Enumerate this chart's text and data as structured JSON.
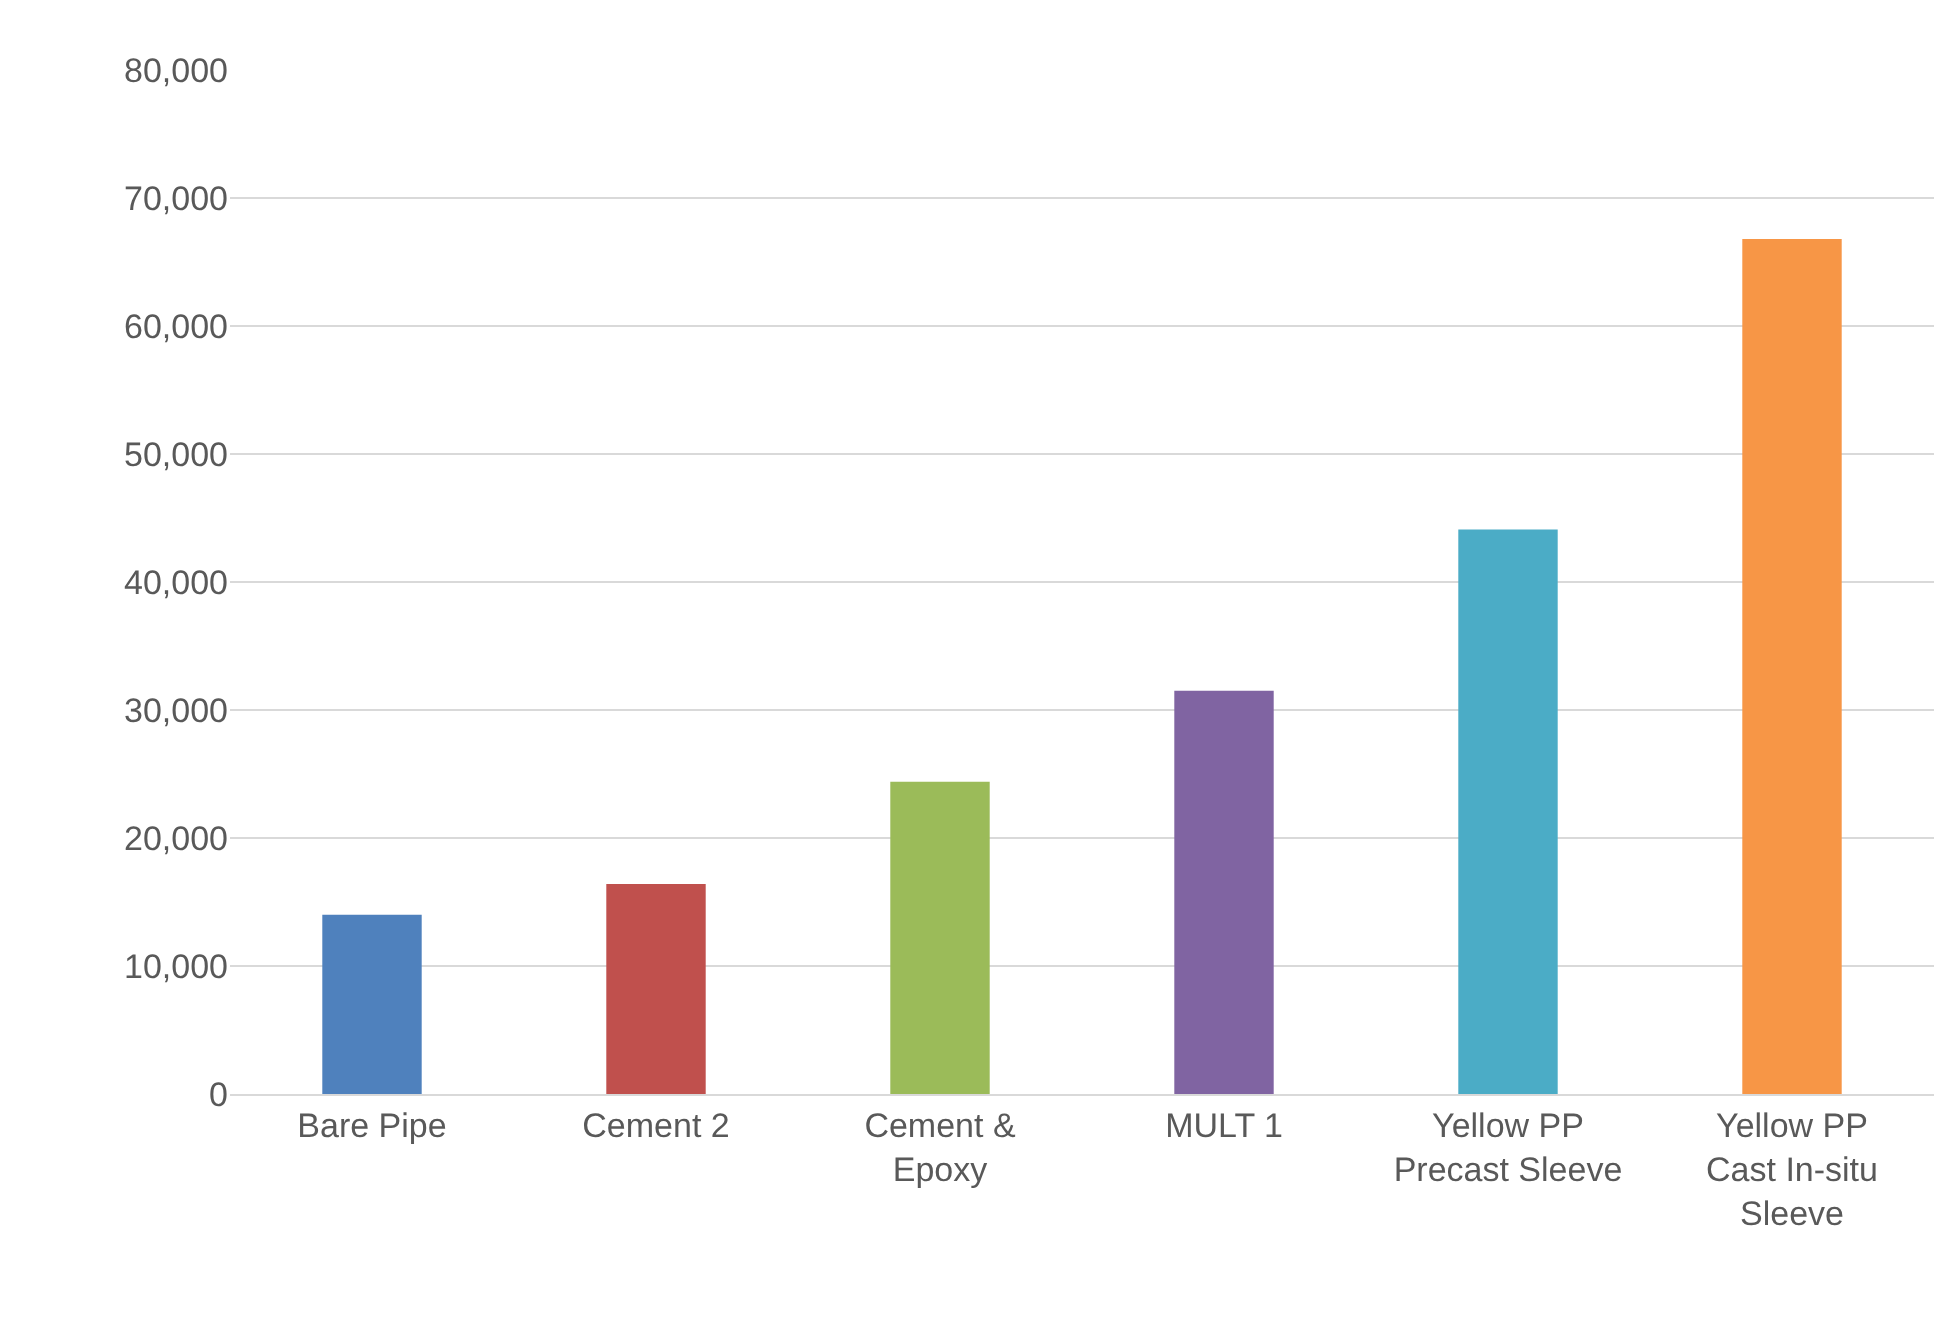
{
  "chart_data": {
    "type": "bar",
    "categories": [
      "Bare Pipe",
      "Cement 2",
      "Cement &\nEpoxy",
      "MULT 1",
      "Yellow PP\nPrecast Sleeve",
      "Yellow PP\nCast In-situ\nSleeve"
    ],
    "values": [
      14000,
      16400,
      24400,
      31500,
      44100,
      66800
    ],
    "colors": [
      "#4f81bd",
      "#c0504d",
      "#9bbb59",
      "#8064a2",
      "#4bacc6",
      "#f79646"
    ],
    "ylim": [
      0,
      80000
    ],
    "yticks": [
      {
        "value": 0,
        "label": "0"
      },
      {
        "value": 10000,
        "label": "10,000"
      },
      {
        "value": 20000,
        "label": "20,000"
      },
      {
        "value": 30000,
        "label": "30,000"
      },
      {
        "value": 40000,
        "label": "40,000"
      },
      {
        "value": 50000,
        "label": "50,000"
      },
      {
        "value": 60000,
        "label": "60,000"
      },
      {
        "value": 70000,
        "label": "70,000"
      },
      {
        "value": 80000,
        "label": "80,000"
      }
    ],
    "grid": "y",
    "legend": false
  }
}
